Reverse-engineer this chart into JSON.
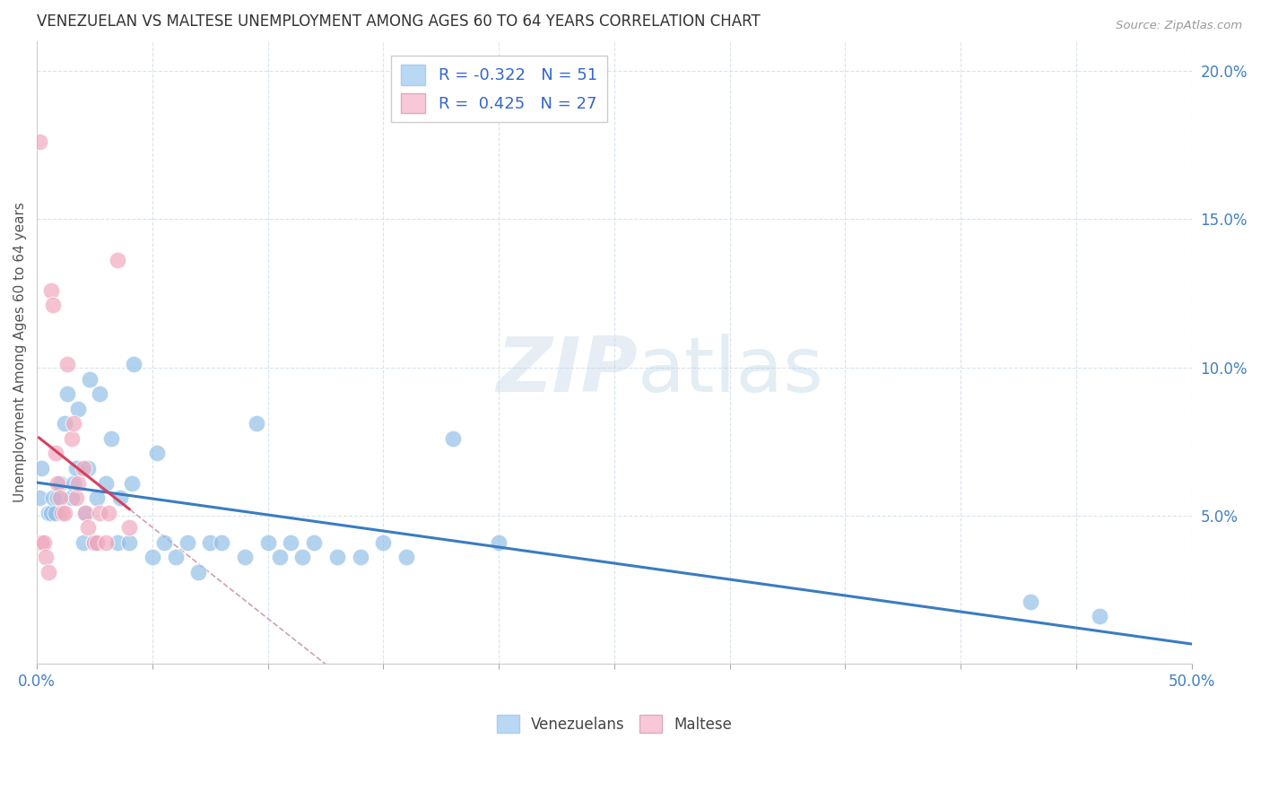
{
  "title": "VENEZUELAN VS MALTESE UNEMPLOYMENT AMONG AGES 60 TO 64 YEARS CORRELATION CHART",
  "source": "Source: ZipAtlas.com",
  "ylabel": "Unemployment Among Ages 60 to 64 years",
  "xlim": [
    0.0,
    0.5
  ],
  "ylim": [
    0.0,
    0.21
  ],
  "xticks": [
    0.0,
    0.05,
    0.1,
    0.15,
    0.2,
    0.25,
    0.3,
    0.35,
    0.4,
    0.45,
    0.5
  ],
  "yticks": [
    0.0,
    0.05,
    0.1,
    0.15,
    0.2
  ],
  "background_color": "#ffffff",
  "grid_color": "#d8e4ee",
  "venezuelan_color": "#92c0e8",
  "maltese_color": "#f0a8be",
  "venezuelan_R": -0.322,
  "venezuelan_N": 51,
  "maltese_R": 0.425,
  "maltese_N": 27,
  "venezuelan_x": [
    0.001,
    0.002,
    0.005,
    0.006,
    0.007,
    0.008,
    0.009,
    0.01,
    0.012,
    0.013,
    0.015,
    0.016,
    0.017,
    0.018,
    0.02,
    0.021,
    0.022,
    0.023,
    0.025,
    0.026,
    0.027,
    0.03,
    0.032,
    0.035,
    0.036,
    0.04,
    0.041,
    0.042,
    0.05,
    0.052,
    0.055,
    0.06,
    0.065,
    0.07,
    0.075,
    0.08,
    0.09,
    0.095,
    0.1,
    0.105,
    0.11,
    0.115,
    0.12,
    0.13,
    0.14,
    0.15,
    0.16,
    0.18,
    0.2,
    0.43,
    0.46
  ],
  "venezuelan_y": [
    0.056,
    0.066,
    0.051,
    0.051,
    0.056,
    0.051,
    0.056,
    0.061,
    0.081,
    0.091,
    0.056,
    0.061,
    0.066,
    0.086,
    0.041,
    0.051,
    0.066,
    0.096,
    0.041,
    0.056,
    0.091,
    0.061,
    0.076,
    0.041,
    0.056,
    0.041,
    0.061,
    0.101,
    0.036,
    0.071,
    0.041,
    0.036,
    0.041,
    0.031,
    0.041,
    0.041,
    0.036,
    0.081,
    0.041,
    0.036,
    0.041,
    0.036,
    0.041,
    0.036,
    0.036,
    0.041,
    0.036,
    0.076,
    0.041,
    0.021,
    0.016
  ],
  "maltese_x": [
    0.001,
    0.002,
    0.003,
    0.004,
    0.005,
    0.006,
    0.007,
    0.008,
    0.009,
    0.01,
    0.011,
    0.012,
    0.013,
    0.015,
    0.016,
    0.017,
    0.018,
    0.02,
    0.021,
    0.022,
    0.025,
    0.026,
    0.027,
    0.03,
    0.031,
    0.035,
    0.04
  ],
  "maltese_y": [
    0.176,
    0.041,
    0.041,
    0.036,
    0.031,
    0.126,
    0.121,
    0.071,
    0.061,
    0.056,
    0.051,
    0.051,
    0.101,
    0.076,
    0.081,
    0.056,
    0.061,
    0.066,
    0.051,
    0.046,
    0.041,
    0.041,
    0.051,
    0.041,
    0.051,
    0.136,
    0.046
  ],
  "watermark_zip": "ZIP",
  "watermark_atlas": "atlas",
  "legend_venezuelan_color": "#b8d8f4",
  "legend_maltese_color": "#f8c8d8",
  "trendline_venezuelan_color": "#3a7cc0",
  "trendline_maltese_color": "#d84060",
  "trendline_dashed_color": "#d0a0b0"
}
